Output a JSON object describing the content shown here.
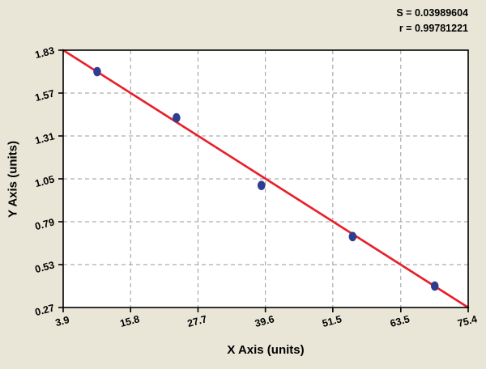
{
  "stats": {
    "s_text": "S = 0.03989604",
    "r_text": "r = 0.99781221"
  },
  "chart_data": {
    "type": "scatter",
    "title": "",
    "xlabel": "X Axis (units)",
    "ylabel": "Y Axis (units)",
    "xlim": [
      3.9,
      75.4
    ],
    "ylim": [
      0.27,
      1.83
    ],
    "x_ticks": [
      "3.9",
      "15.8",
      "27.7",
      "39.6",
      "51.5",
      "63.5",
      "75.4"
    ],
    "y_ticks": [
      "0.27",
      "0.53",
      "0.79",
      "1.05",
      "1.31",
      "1.57",
      "1.83"
    ],
    "points": [
      {
        "x": 9.9,
        "y": 1.7
      },
      {
        "x": 23.9,
        "y": 1.42
      },
      {
        "x": 38.9,
        "y": 1.01
      },
      {
        "x": 55.0,
        "y": 0.7
      },
      {
        "x": 69.5,
        "y": 0.4
      }
    ],
    "fit_line": {
      "x1": 3.9,
      "y1": 1.83,
      "x2": 75.4,
      "y2": 0.27
    },
    "fit_stats": {
      "S": 0.03989604,
      "r": 0.99781221
    },
    "annotations": [
      "S = 0.03989604",
      "r = 0.99781221"
    ],
    "grid": "dashed",
    "legend": "none",
    "colors": {
      "line": "#e8202a",
      "points": "#2e3d90",
      "background": "#eae6d7",
      "plot_bg": "#ffffff",
      "grid": "#999999",
      "border": "#000000",
      "text": "#000000"
    }
  }
}
